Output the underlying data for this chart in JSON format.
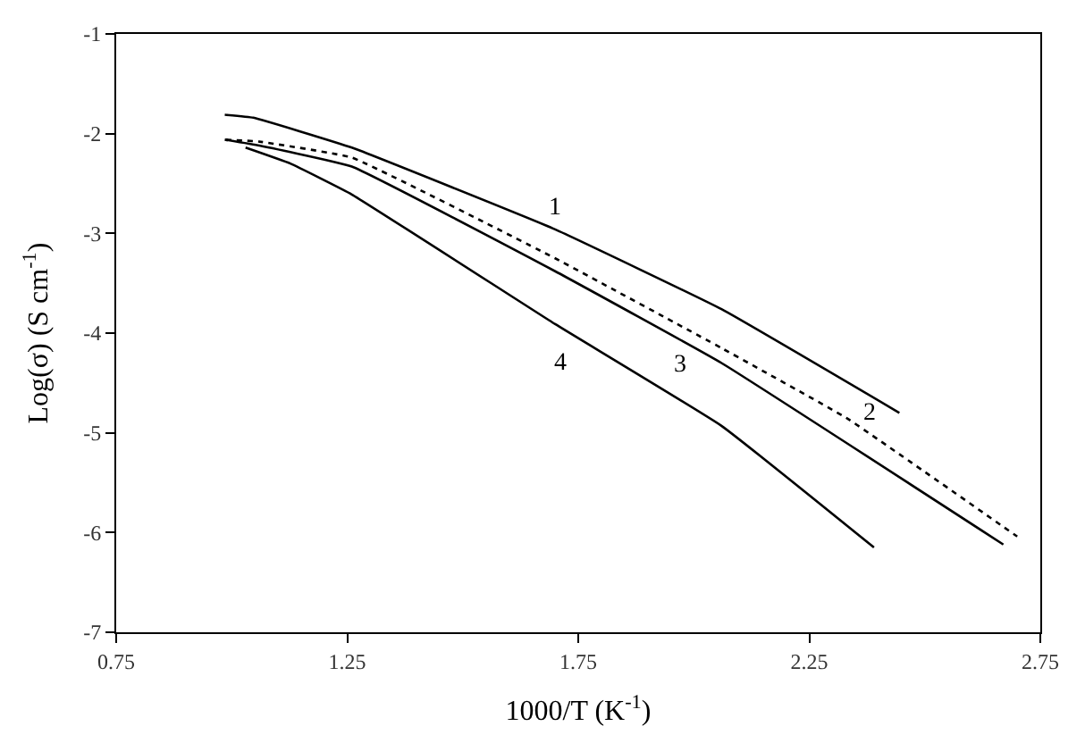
{
  "chart_data": {
    "type": "line",
    "xlabel": "1000/T (K$^{-1}$)",
    "ylabel": "Log(σ) (S cm$^{-1}$)",
    "xlim": [
      0.75,
      2.75
    ],
    "xticks": [
      0.75,
      1.25,
      1.75,
      2.25,
      2.75
    ],
    "ylim": [
      -7,
      -1
    ],
    "yticks": [
      -7,
      -6,
      -5,
      -4,
      -3,
      -2,
      -1
    ],
    "marker": "none",
    "series": [
      {
        "name": "1",
        "color": "#000000",
        "line_style": "solid",
        "x": [
          0.985,
          1.047,
          1.26,
          1.7,
          2.06,
          2.445
        ],
        "values": [
          -1.81,
          -1.84,
          -2.14,
          -2.96,
          -3.76,
          -4.8
        ]
      },
      {
        "name": "2",
        "color": "#000000",
        "line_style": "dotted",
        "x": [
          0.987,
          1.06,
          1.26,
          1.7,
          2.06,
          2.33,
          2.7
        ],
        "values": [
          -2.06,
          -2.08,
          -2.24,
          -3.25,
          -4.15,
          -4.85,
          -6.04
        ]
      },
      {
        "name": "3",
        "color": "#000000",
        "line_style": "solid",
        "x": [
          0.985,
          1.06,
          1.26,
          1.7,
          2.06,
          2.67
        ],
        "values": [
          -2.06,
          -2.12,
          -2.33,
          -3.38,
          -4.3,
          -6.12
        ]
      },
      {
        "name": "4",
        "color": "#000000",
        "line_style": "solid",
        "x": [
          1.03,
          1.127,
          1.26,
          1.7,
          2.06,
          2.39
        ],
        "values": [
          -2.14,
          -2.3,
          -2.61,
          -3.91,
          -4.93,
          -6.15
        ]
      }
    ]
  }
}
